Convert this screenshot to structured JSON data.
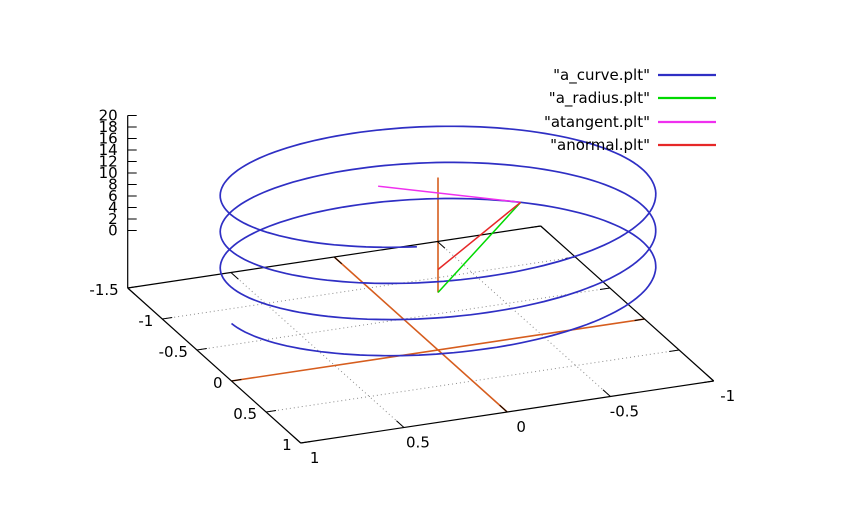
{
  "chart_data": {
    "type": "line",
    "projection": "3d",
    "title": "",
    "legend": {
      "position": "top-right"
    },
    "series": [
      {
        "label": "\"a_curve.plt\"",
        "color": "#2f2fc4",
        "kind": "parametric",
        "parametric": {
          "x": "sin(t)",
          "y": "cos(t)",
          "z": "t",
          "t_min": 0,
          "t_max": 20
        }
      },
      {
        "label": "\"a_radius.plt\"",
        "color": "#00d900",
        "kind": "segment",
        "from": [
          0,
          0,
          0
        ],
        "to": [
          -0.7568,
          -0.6536,
          4
        ]
      },
      {
        "label": "\"atangent.plt\"",
        "color": "#ef30ef",
        "kind": "segment",
        "from": [
          -0.7568,
          -0.6536,
          4
        ],
        "to": [
          -1.219,
          -0.1184,
          4.7071
        ]
      },
      {
        "label": "\"anormal.plt\"",
        "color": "#e62828",
        "kind": "segment",
        "from": [
          -0.7568,
          -0.6536,
          4
        ],
        "to": [
          0,
          0,
          4
        ]
      }
    ],
    "axes": {
      "x": {
        "range": [
          -1.5,
          1
        ],
        "tick_values": [
          -1.5,
          -1,
          -0.5,
          0,
          0.5,
          1
        ],
        "tick_labels": [
          "-1.5",
          "-1",
          "-0.5",
          "0",
          "0.5",
          "1"
        ]
      },
      "y": {
        "range": [
          1,
          -1
        ],
        "tick_values": [
          1,
          0.5,
          0,
          -0.5,
          -1
        ],
        "tick_labels": [
          "1",
          "0.5",
          "0",
          "-0.5",
          "-1"
        ]
      },
      "z": {
        "range": [
          0,
          20
        ],
        "tick_values": [
          0,
          2,
          4,
          6,
          8,
          10,
          12,
          14,
          16,
          18,
          20
        ],
        "tick_labels": [
          "0",
          "2",
          "4",
          "6",
          "8",
          "10",
          "12",
          "14",
          "16",
          "18",
          "20"
        ]
      }
    },
    "zero_axes": {
      "color": "#d65d1e",
      "x_zero_line": {
        "x": 0,
        "y_from": 1,
        "y_to": -1
      },
      "y_zero_line": {
        "y": 0,
        "x_from": -1.5,
        "x_to": 1
      },
      "z_zero_line": {
        "at_xy": [
          0,
          0
        ],
        "z_from": 0,
        "z_to": 20
      }
    },
    "grid": {
      "color": "#8a8a8a",
      "x_values": [
        -1,
        -0.5,
        0.5
      ],
      "y_values": [
        -0.5,
        0.5
      ]
    },
    "border_color": "#000000",
    "text_color": "#000000"
  }
}
